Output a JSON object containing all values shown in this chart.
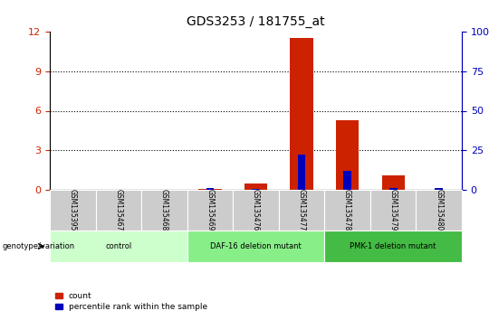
{
  "title": "GDS3253 / 181755_at",
  "samples": [
    "GSM135395",
    "GSM135467",
    "GSM135468",
    "GSM135469",
    "GSM135476",
    "GSM135477",
    "GSM135478",
    "GSM135479",
    "GSM135480"
  ],
  "count_values": [
    0.0,
    0.0,
    0.0,
    0.05,
    0.5,
    11.5,
    5.3,
    1.1,
    0.0
  ],
  "percentile_values": [
    0.0,
    0.0,
    0.0,
    1.0,
    0.5,
    22.5,
    12.0,
    1.0,
    1.2
  ],
  "ylim_left": [
    0,
    12
  ],
  "ylim_right": [
    0,
    100
  ],
  "yticks_left": [
    0,
    3,
    6,
    9,
    12
  ],
  "yticks_right": [
    0,
    25,
    50,
    75,
    100
  ],
  "bar_color_red": "#cc2200",
  "bar_color_blue": "#0000bb",
  "bg_color": "#ffffff",
  "group_data": [
    {
      "label": "control",
      "start": 0,
      "end": 2,
      "color": "#ccffcc"
    },
    {
      "label": "DAF-16 deletion mutant",
      "start": 3,
      "end": 5,
      "color": "#88ee88"
    },
    {
      "label": "PMK-1 deletion mutant",
      "start": 6,
      "end": 8,
      "color": "#44bb44"
    }
  ],
  "tick_label_area_color": "#cccccc",
  "legend_count_label": "count",
  "legend_percentile_label": "percentile rank within the sample",
  "genotype_label": "genotype/variation"
}
